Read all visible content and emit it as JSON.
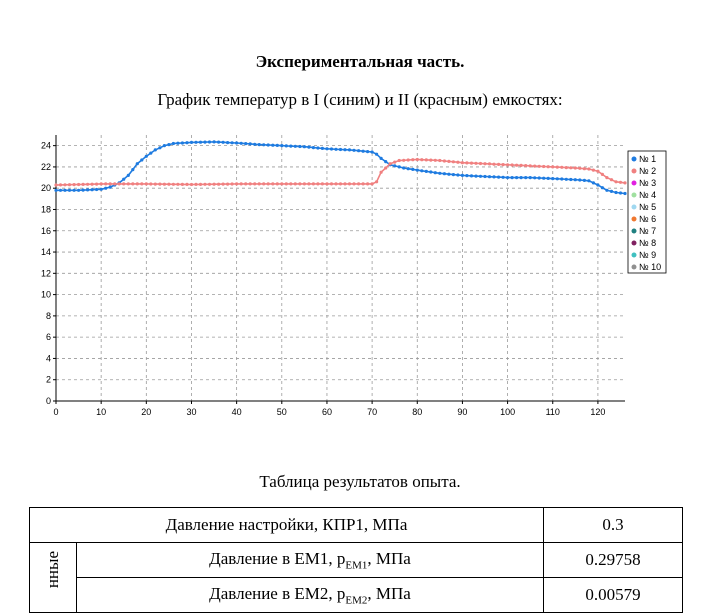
{
  "heading": "Экспериментальная часть.",
  "subtitle": "График температур в I (синим) и II (красным) емкостях:",
  "chart_data": {
    "type": "line",
    "title": "",
    "xlabel": "",
    "ylabel": "",
    "xlim": [
      0,
      126
    ],
    "ylim": [
      0,
      25
    ],
    "x_ticks": [
      0,
      10,
      20,
      30,
      40,
      50,
      60,
      70,
      80,
      90,
      100,
      110,
      120
    ],
    "y_ticks": [
      0,
      2,
      4,
      6,
      8,
      10,
      12,
      14,
      16,
      18,
      20,
      22,
      24
    ],
    "grid": true,
    "legend_position": "right",
    "legend": [
      "№ 1",
      "№ 2",
      "№ 3",
      "№ 4",
      "№ 5",
      "№ 6",
      "№ 7",
      "№ 8",
      "№ 9",
      "№ 10"
    ],
    "series": [
      {
        "name": "№ 1",
        "color": "#1e7be0",
        "points": [
          [
            0,
            19.8
          ],
          [
            5,
            19.8
          ],
          [
            10,
            19.9
          ],
          [
            12,
            20.1
          ],
          [
            14,
            20.5
          ],
          [
            16,
            21.2
          ],
          [
            18,
            22.3
          ],
          [
            20,
            23.0
          ],
          [
            22,
            23.6
          ],
          [
            24,
            24.0
          ],
          [
            26,
            24.2
          ],
          [
            30,
            24.3
          ],
          [
            35,
            24.35
          ],
          [
            40,
            24.25
          ],
          [
            45,
            24.1
          ],
          [
            50,
            24.0
          ],
          [
            55,
            23.9
          ],
          [
            60,
            23.7
          ],
          [
            65,
            23.6
          ],
          [
            70,
            23.4
          ],
          [
            71,
            23.2
          ],
          [
            72,
            22.8
          ],
          [
            74,
            22.2
          ],
          [
            77,
            21.9
          ],
          [
            80,
            21.7
          ],
          [
            85,
            21.4
          ],
          [
            90,
            21.2
          ],
          [
            95,
            21.1
          ],
          [
            100,
            21.0
          ],
          [
            105,
            21.0
          ],
          [
            110,
            20.9
          ],
          [
            115,
            20.8
          ],
          [
            118,
            20.7
          ],
          [
            120,
            20.3
          ],
          [
            122,
            19.8
          ],
          [
            124,
            19.6
          ],
          [
            126,
            19.5
          ]
        ]
      },
      {
        "name": "№ 2",
        "color": "#f08080",
        "points": [
          [
            0,
            20.3
          ],
          [
            10,
            20.4
          ],
          [
            20,
            20.4
          ],
          [
            30,
            20.35
          ],
          [
            40,
            20.4
          ],
          [
            50,
            20.4
          ],
          [
            60,
            20.4
          ],
          [
            70,
            20.4
          ],
          [
            71,
            20.6
          ],
          [
            72,
            21.5
          ],
          [
            74,
            22.3
          ],
          [
            76,
            22.6
          ],
          [
            80,
            22.7
          ],
          [
            85,
            22.6
          ],
          [
            90,
            22.4
          ],
          [
            95,
            22.3
          ],
          [
            100,
            22.2
          ],
          [
            105,
            22.1
          ],
          [
            110,
            22.0
          ],
          [
            115,
            21.9
          ],
          [
            118,
            21.8
          ],
          [
            120,
            21.6
          ],
          [
            122,
            21.0
          ],
          [
            124,
            20.6
          ],
          [
            126,
            20.5
          ]
        ]
      },
      {
        "name": "№ 3",
        "color": "#e020e0",
        "points": []
      },
      {
        "name": "№ 4",
        "color": "#a0e0a0",
        "points": []
      },
      {
        "name": "№ 5",
        "color": "#a0d8f0",
        "points": []
      },
      {
        "name": "№ 6",
        "color": "#f07830",
        "points": []
      },
      {
        "name": "№ 7",
        "color": "#208080",
        "points": []
      },
      {
        "name": "№ 8",
        "color": "#802060",
        "points": []
      },
      {
        "name": "№ 9",
        "color": "#40c0c0",
        "points": []
      },
      {
        "name": "№ 10",
        "color": "#909090",
        "points": []
      }
    ]
  },
  "table": {
    "caption": "Таблица результатов опыта.",
    "side_label": "нные",
    "rows": [
      {
        "label": "Давление настройки, КПР1, МПа",
        "sub": "",
        "suffix": "",
        "value": "0.3"
      },
      {
        "label": "Давление в ЕМ1, p",
        "sub": "ЕМ1",
        "suffix": ", МПа",
        "value": "0.29758"
      },
      {
        "label": "Давление в ЕМ2, p",
        "sub": "ЕМ2",
        "suffix": ", МПа",
        "value": "0.00579"
      }
    ]
  }
}
